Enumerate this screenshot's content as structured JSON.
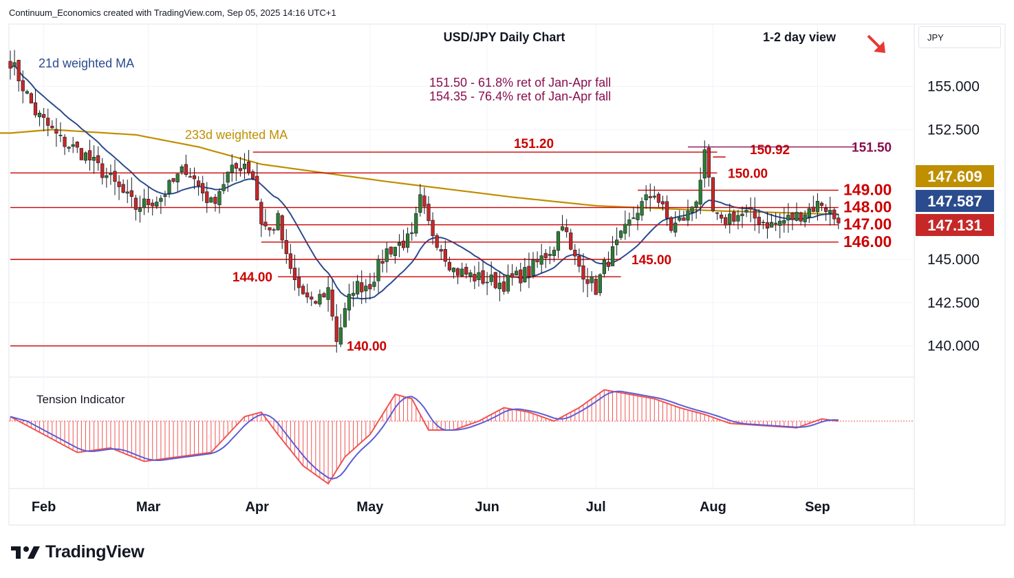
{
  "header": {
    "attribution": "Continuum_Economics created with TradingView.com, Sep 05, 2025 14:16 UTC+1"
  },
  "symbol_box": "JPY",
  "brand": {
    "name": "TradingView",
    "icon": "tradingview-logo-icon"
  },
  "view_arrow_icon": "arrow-down-right-icon",
  "colors": {
    "up": "#2e7d32",
    "down": "#c62828",
    "ma21": "#2a4b8d",
    "ma233": "#bf8f00",
    "level": "#cc0000",
    "maroon": "#880e4f",
    "tension_red": "#ef5350",
    "tension_blue": "#5b5bd6"
  },
  "chart_data": {
    "type": "candlestick",
    "title": "USD/JPY Daily Chart",
    "subtitle": "1-2 day view",
    "annotations": {
      "ma21": "21d weighted MA",
      "ma233": "233d weighted MA",
      "fib1": "151.50 - 61.8% ret of Jan-Apr fall",
      "fib2": "154.35 - 76.4% ret of Jan-Apr fall",
      "tension": "Tension Indicator"
    },
    "x_months": [
      "Feb",
      "Mar",
      "Apr",
      "May",
      "Jun",
      "Jul",
      "Aug",
      "Sep"
    ],
    "y_ticks": [
      "155.000",
      "152.500",
      "145.000",
      "142.500",
      "140.000"
    ],
    "ylim": [
      138.2,
      158.6
    ],
    "price_badges": [
      {
        "label": "147.609",
        "value": 147.609,
        "color": "#bf8f00"
      },
      {
        "label": "147.587",
        "value": 147.587,
        "color": "#2a4b8d"
      },
      {
        "label": "147.131",
        "value": 147.131,
        "color": "#c62828"
      }
    ],
    "levels": [
      {
        "value": 151.2,
        "label": "151.20",
        "start_day": 58,
        "end_day": 169
      },
      {
        "value": 150.0,
        "label": "150.00",
        "start_day": 0,
        "end_day": 169
      },
      {
        "value": 149.0,
        "label": "149.00",
        "start_day": 150,
        "end_day": 198
      },
      {
        "value": 148.0,
        "label": "148.00",
        "start_day": 0,
        "end_day": 198
      },
      {
        "value": 147.0,
        "label": "147.00",
        "start_day": 60,
        "end_day": 198
      },
      {
        "value": 146.0,
        "label": "146.00",
        "start_day": 60,
        "end_day": 198
      },
      {
        "value": 145.0,
        "label": "145.00",
        "start_day": 0,
        "end_day": 146
      },
      {
        "value": 144.0,
        "label": "144.00",
        "start_day": 64,
        "end_day": 146
      },
      {
        "value": 140.0,
        "label": "140.00",
        "start_day": 0,
        "end_day": 78
      },
      {
        "value": 150.92,
        "label": "150.92",
        "start_day": 168,
        "end_day": 171
      },
      {
        "value": 151.5,
        "label": "151.50",
        "start_day": 162,
        "end_day": 202
      }
    ],
    "keypoints": {
      "x": [
        0,
        6,
        12,
        18,
        24,
        30,
        36,
        42,
        48,
        52,
        56,
        58,
        60,
        62,
        64,
        66,
        68,
        72,
        76,
        78,
        82,
        86,
        90,
        94,
        96,
        98,
        100,
        106,
        112,
        118,
        124,
        130,
        132,
        134,
        136,
        140,
        142,
        146,
        150,
        154,
        158,
        162,
        164,
        166,
        168,
        170,
        172,
        176,
        182,
        188,
        194,
        198
      ],
      "close": [
        156.5,
        153.5,
        151.9,
        151.0,
        149.6,
        148.0,
        148.6,
        150.3,
        148.2,
        149.9,
        150.6,
        149.8,
        147.2,
        146.6,
        147.3,
        145.0,
        143.7,
        142.3,
        143.3,
        140.4,
        143.4,
        143.6,
        145.5,
        146.0,
        146.2,
        148.4,
        147.0,
        144.4,
        143.9,
        143.6,
        144.3,
        145.8,
        147.3,
        145.4,
        144.6,
        143.3,
        144.6,
        146.2,
        147.9,
        148.9,
        146.8,
        147.6,
        148.6,
        150.9,
        147.7,
        147.0,
        147.5,
        147.6,
        147.0,
        147.5,
        148.3,
        147.1
      ]
    },
    "ma233_keypoints": {
      "x": [
        0,
        10,
        30,
        45,
        60,
        90,
        120,
        140,
        150,
        170,
        198
      ],
      "value": [
        152.3,
        152.5,
        152.2,
        151.5,
        150.5,
        149.5,
        148.6,
        148.1,
        148.0,
        147.8,
        147.609
      ]
    },
    "tension_keypoints": {
      "x": [
        0,
        8,
        16,
        24,
        32,
        40,
        48,
        56,
        60,
        64,
        70,
        76,
        80,
        86,
        92,
        96,
        100,
        106,
        112,
        118,
        124,
        130,
        136,
        142,
        148,
        154,
        160,
        166,
        172,
        180,
        188,
        194,
        198
      ],
      "value": [
        0.1,
        -0.3,
        -0.7,
        -0.6,
        -0.9,
        -0.8,
        -0.7,
        0.1,
        0.2,
        -0.3,
        -1.0,
        -1.4,
        -0.8,
        -0.3,
        0.6,
        0.5,
        -0.2,
        -0.2,
        0.0,
        0.3,
        0.2,
        0.0,
        0.3,
        0.7,
        0.6,
        0.5,
        0.3,
        0.15,
        -0.05,
        -0.1,
        -0.15,
        0.05,
        0.0
      ]
    }
  }
}
